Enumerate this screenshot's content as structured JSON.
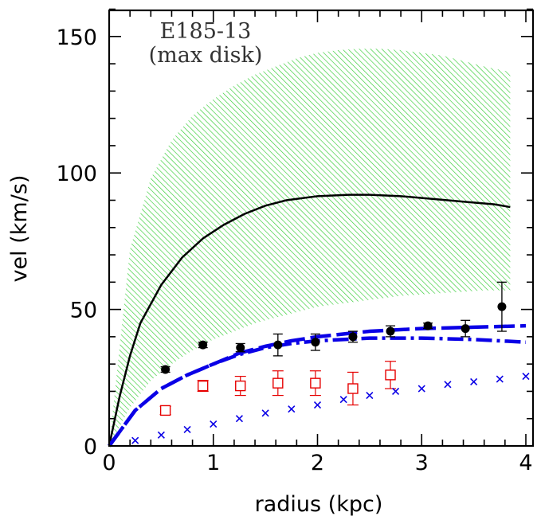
{
  "chart_data": {
    "type": "scatter",
    "title": "",
    "annotations": [
      "E185-13",
      "(max disk)"
    ],
    "xlabel": "radius (kpc)",
    "ylabel": "vel (km/s)",
    "xlim": [
      0,
      4.1
    ],
    "ylim": [
      0,
      160
    ],
    "xticks": [
      0,
      1,
      2,
      3,
      4
    ],
    "yticks": [
      0,
      50,
      100,
      150
    ],
    "grid": false,
    "legend": "none",
    "colors": {
      "band": "#33cc33",
      "observed": "#000000",
      "squares": "#e60000",
      "blue": "#0a00e6",
      "black_curve": "#000000"
    },
    "series": [
      {
        "style": "hatched-band",
        "x": [
          0.0,
          0.2,
          0.4,
          0.6,
          0.8,
          1.0,
          1.2,
          1.4,
          1.6,
          1.8,
          2.0,
          2.2,
          2.4,
          2.6,
          2.8,
          3.0,
          3.2,
          3.4,
          3.6,
          3.85
        ],
        "upper": [
          0,
          72,
          98,
          112,
          121,
          127,
          132,
          136,
          139,
          142,
          144,
          145,
          145.5,
          145.5,
          145,
          144,
          143,
          141,
          139,
          137
        ],
        "lower": [
          0,
          14,
          24,
          30,
          35,
          39,
          42,
          45,
          47,
          49,
          51,
          52,
          53,
          54,
          55,
          55.5,
          56,
          56.5,
          57,
          57
        ]
      },
      {
        "style": "solid-line",
        "x": [
          0.0,
          0.1,
          0.2,
          0.3,
          0.5,
          0.7,
          0.9,
          1.1,
          1.3,
          1.5,
          1.7,
          2.0,
          2.3,
          2.5,
          2.8,
          3.1,
          3.4,
          3.7,
          3.85
        ],
        "y": [
          0,
          18,
          33,
          45,
          59,
          69,
          76,
          81,
          85,
          88,
          90,
          91.5,
          92,
          92,
          91.5,
          90.5,
          89.5,
          88.5,
          87.5
        ]
      },
      {
        "style": "filled-circles",
        "x": [
          0.54,
          0.9,
          1.26,
          1.62,
          1.98,
          2.34,
          2.7,
          3.06,
          3.42,
          3.77
        ],
        "y": [
          28,
          37,
          36,
          37,
          38,
          40,
          42,
          44,
          43,
          51
        ],
        "err": [
          1,
          1,
          1.5,
          4,
          3,
          2,
          2,
          1,
          3,
          9
        ]
      },
      {
        "style": "open-squares",
        "x": [
          0.54,
          0.9,
          1.26,
          1.62,
          1.98,
          2.34,
          2.7
        ],
        "y": [
          13,
          22,
          22,
          23,
          23,
          21,
          26
        ],
        "err": [
          1.5,
          2,
          3.5,
          4.5,
          4.5,
          6,
          5
        ]
      },
      {
        "style": "crosses",
        "x": [
          0.25,
          0.5,
          0.75,
          1.0,
          1.25,
          1.5,
          1.75,
          2.0,
          2.25,
          2.5,
          2.75,
          3.0,
          3.25,
          3.5,
          3.75,
          4.0
        ],
        "y": [
          2,
          4,
          6,
          8,
          10,
          12,
          13.5,
          15,
          17,
          18.5,
          20,
          21,
          22.5,
          23.5,
          24.5,
          25.5
        ]
      },
      {
        "style": "dashed-line",
        "x": [
          0.0,
          0.25,
          0.5,
          0.75,
          1.0,
          1.25,
          1.5,
          1.75,
          2.0,
          2.5,
          3.0,
          3.5,
          4.0
        ],
        "y": [
          0,
          13,
          21,
          26,
          30,
          34,
          36.5,
          38.5,
          40,
          42,
          43,
          43.5,
          44
        ]
      },
      {
        "style": "dash-dot-line",
        "x": [
          0.0,
          0.25,
          0.5,
          0.75,
          1.0,
          1.25,
          1.5,
          1.75,
          2.0,
          2.5,
          3.0,
          3.5,
          4.0
        ],
        "y": [
          0,
          13,
          21,
          26,
          30,
          33.5,
          36,
          37.5,
          38.5,
          39.5,
          39.5,
          39,
          38
        ]
      }
    ]
  }
}
